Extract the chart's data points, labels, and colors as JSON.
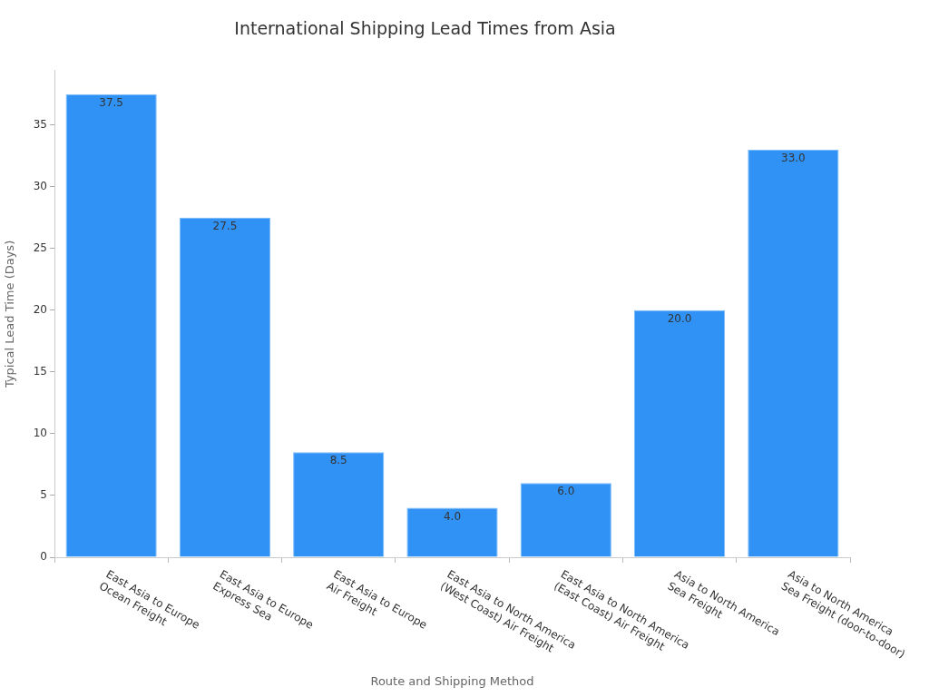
{
  "chart_data": {
    "type": "bar",
    "title": "International Shipping Lead Times from Asia",
    "xlabel": "Route and Shipping Method",
    "ylabel": "Typical Lead Time (Days)",
    "categories": [
      "East Asia to Europe\nOcean Freight",
      "East Asia to Europe\nExpress Sea",
      "East Asia to Europe\nAir Freight",
      "East Asia to North America\n(West Coast) Air Freight",
      "East Asia to North America\n(East Coast) Air Freight",
      "Asia to North America\nSea Freight",
      "Asia to North America\nSea Freight (door-to-door)"
    ],
    "values": [
      37.5,
      27.5,
      8.5,
      4,
      6,
      20,
      33
    ],
    "value_labels": [
      "37.5",
      "27.5",
      "8.5",
      "4.0",
      "6.0",
      "20.0",
      "33.0"
    ],
    "color": "#3092f5",
    "ylim": [
      0,
      39.4
    ],
    "yticks": [
      0,
      5,
      10,
      15,
      20,
      25,
      30,
      35
    ],
    "grid": false,
    "legend": false
  }
}
